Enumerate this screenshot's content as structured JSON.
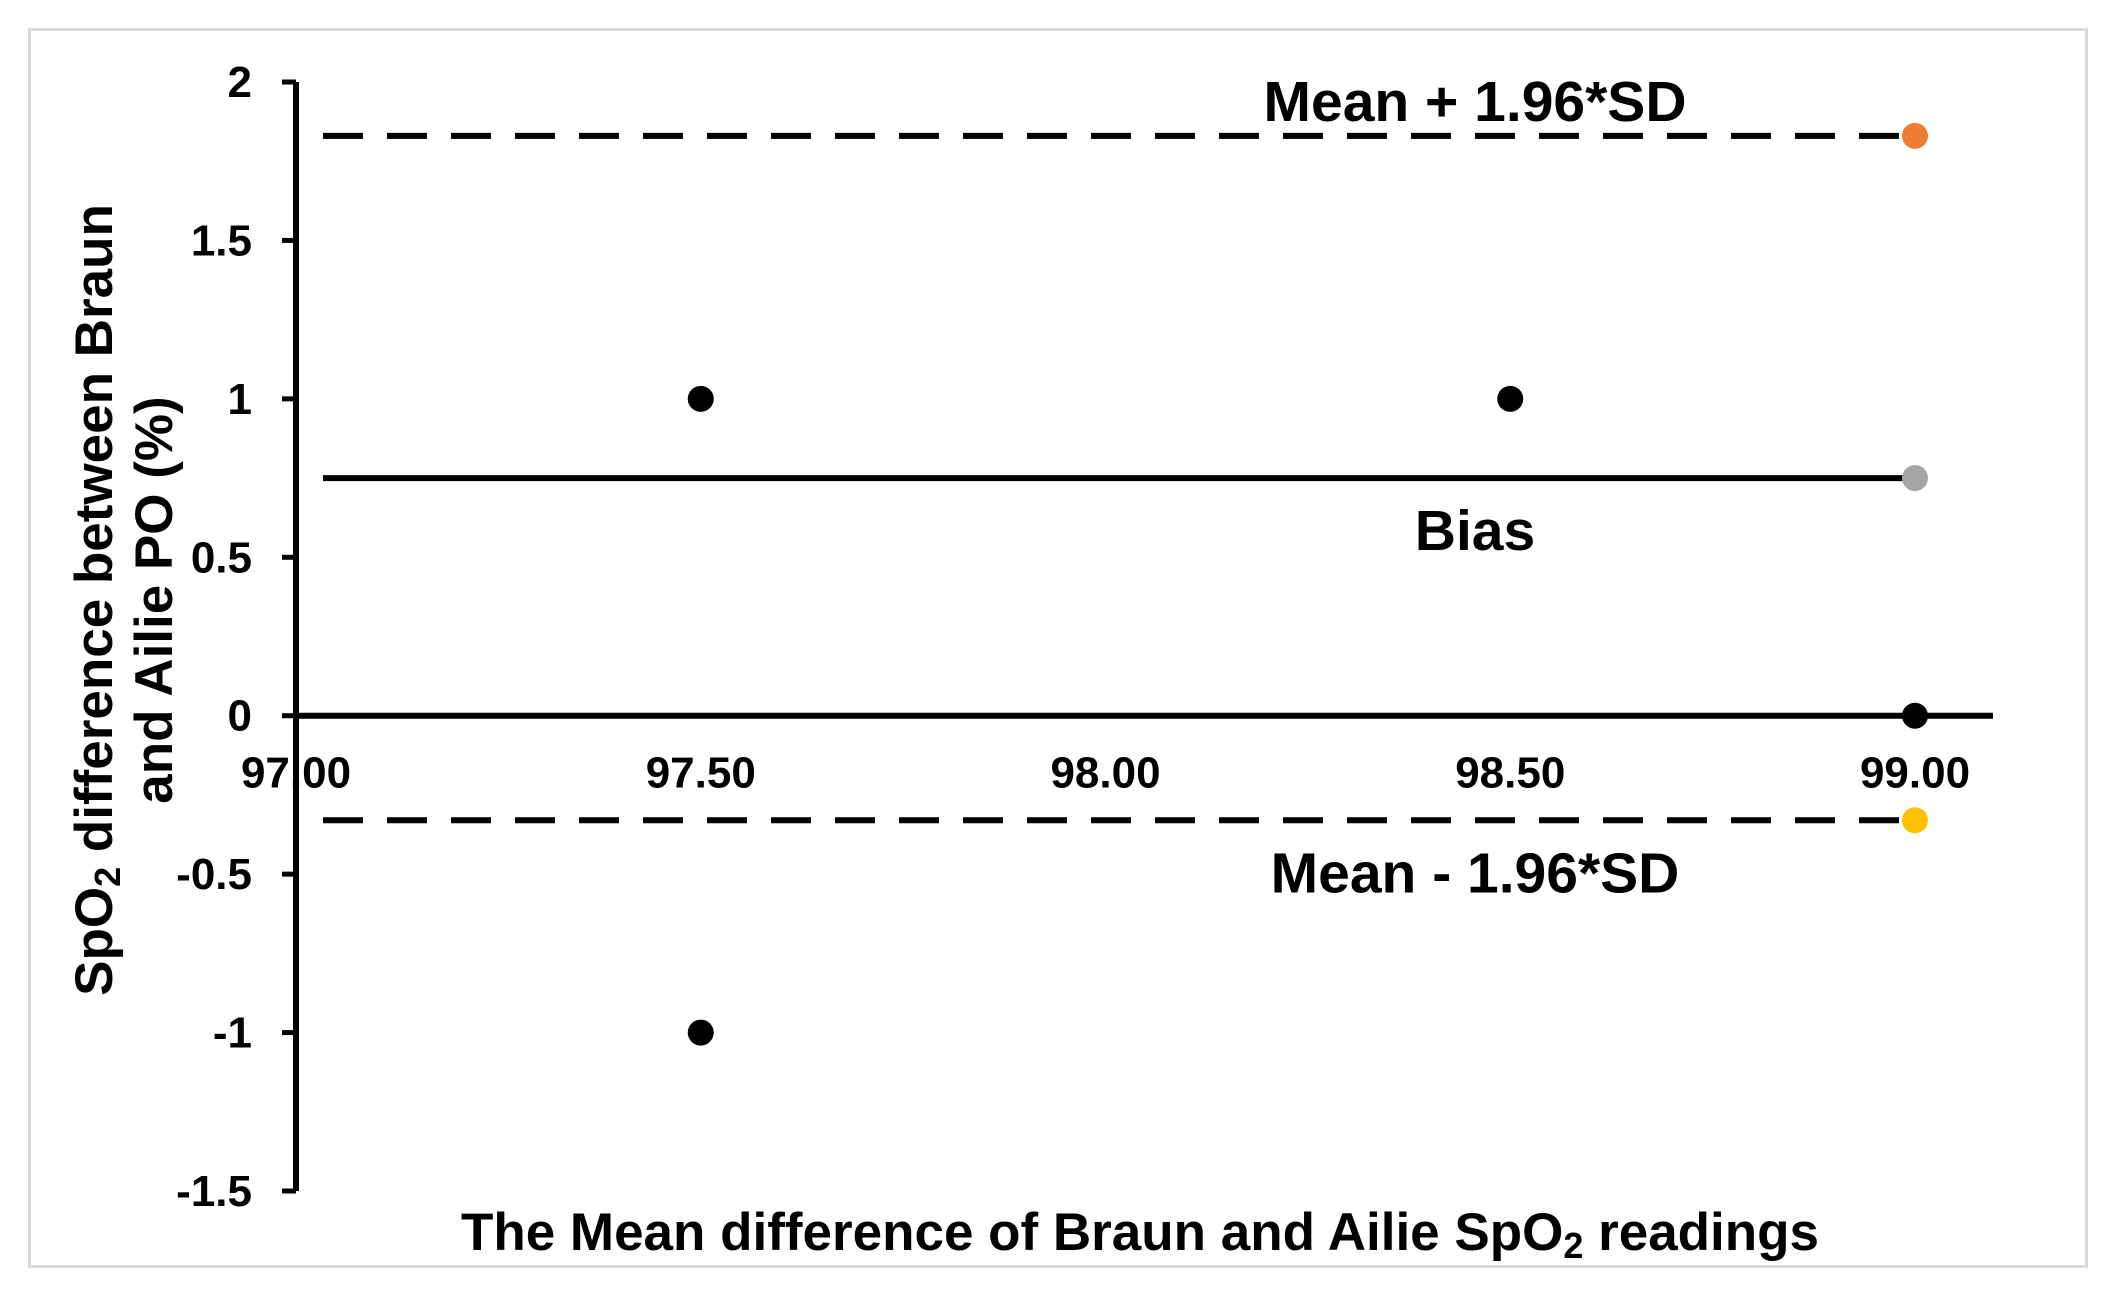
{
  "chart_data": {
    "type": "scatter",
    "title": "",
    "xlabel": {
      "before": "The Mean difference of Braun and Ailie SpO",
      "sub": "2",
      "after": " readings"
    },
    "ylabel": {
      "line1_before": "SpO",
      "line1_sub": "2",
      "line1_after": " difference between Braun",
      "line2": "and Ailie PO (%)"
    },
    "xlim": [
      97.0,
      99.0
    ],
    "ylim": [
      -1.5,
      2.0
    ],
    "x_ticks": [
      97.0,
      97.5,
      98.0,
      98.5,
      99.0
    ],
    "x_tick_labels": [
      "97.00",
      "97.50",
      "98.00",
      "98.50",
      "99.00"
    ],
    "y_ticks": [
      2,
      1.5,
      1,
      0.5,
      0,
      -0.5,
      -1,
      -1.5
    ],
    "y_tick_labels": [
      "2",
      "1.5",
      "1",
      "0.5",
      "0",
      "-0.5",
      "-1",
      "-1.5"
    ],
    "x_axis_crosses_at_y": 0,
    "grid": false,
    "legend": "none",
    "points": [
      {
        "x": 97.5,
        "y": 1,
        "color": "#000000"
      },
      {
        "x": 98.5,
        "y": 1,
        "color": "#000000"
      },
      {
        "x": 97.5,
        "y": -1,
        "color": "#000000"
      },
      {
        "x": 99.0,
        "y": 0,
        "color": "#000000"
      }
    ],
    "reference_lines": [
      {
        "name": "upper_limit",
        "label": "Mean + 1.96*SD",
        "y": 1.83,
        "style": "dashed",
        "marker_color": "#ed7d31",
        "label_position": "above"
      },
      {
        "name": "bias",
        "label": "Bias",
        "y": 0.75,
        "style": "solid",
        "marker_color": "#a5a5a5",
        "label_position": "below"
      },
      {
        "name": "lower_limit",
        "label": "Mean - 1.96*SD",
        "y": -0.33,
        "style": "dashed",
        "marker_color": "#ffc000",
        "label_position": "below"
      }
    ]
  }
}
